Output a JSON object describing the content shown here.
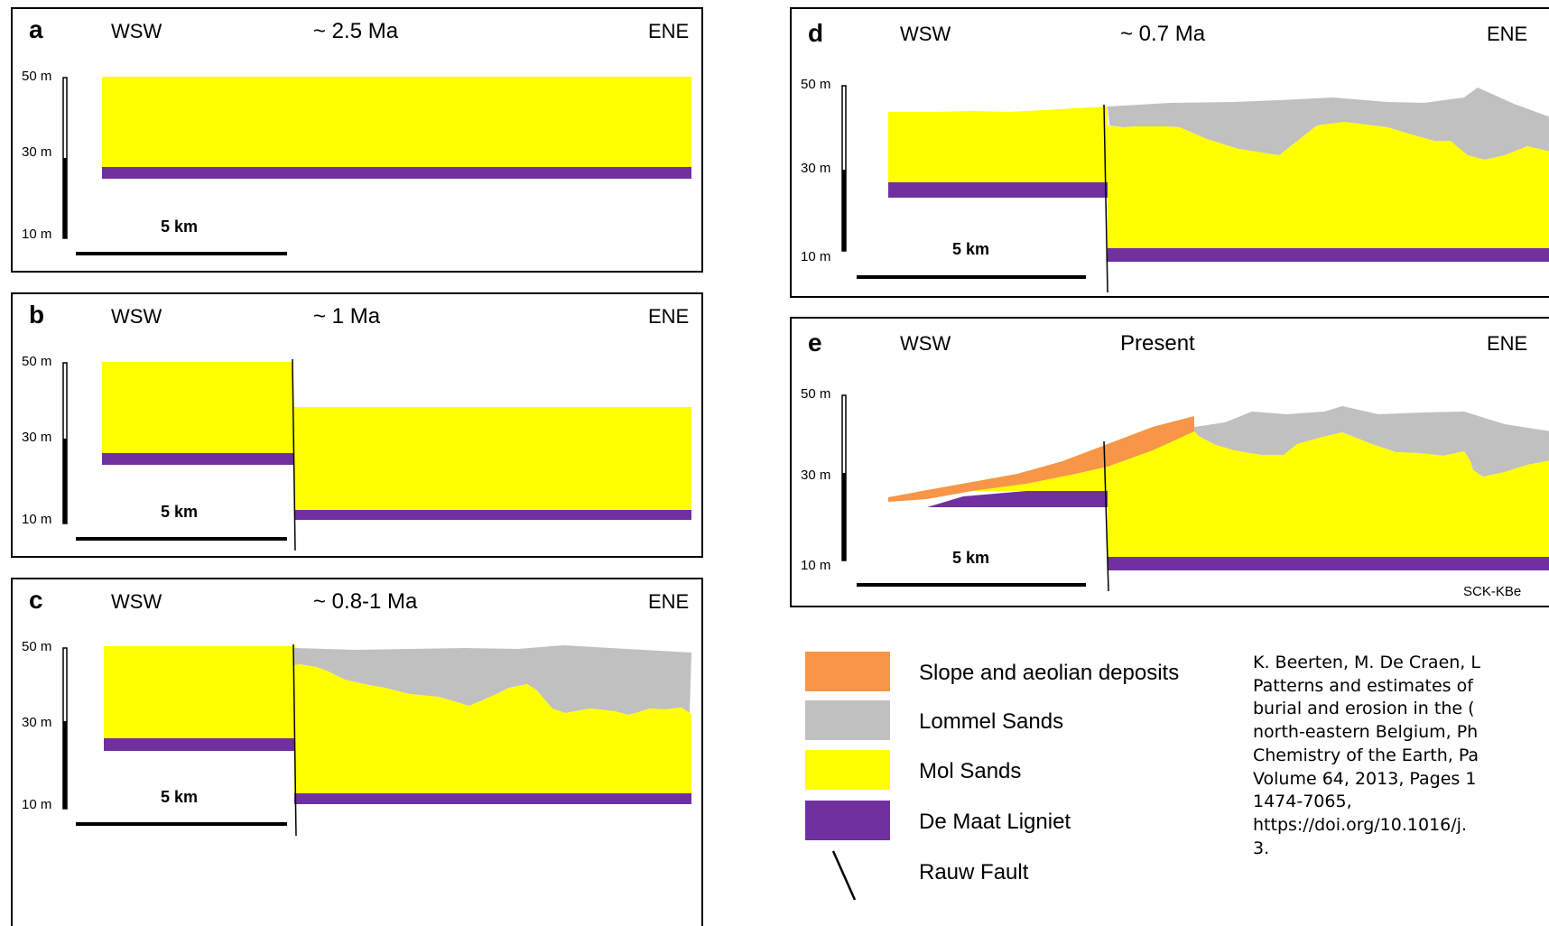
{
  "colors": {
    "slope_aeolian": "#f79646",
    "lommel_sands": "#c0c0c0",
    "mol_sands": "#ffff00",
    "de_maat_ligniet": "#7030a0",
    "rauw_fault": "#000000"
  },
  "panels": [
    {
      "id": "a",
      "label": "a",
      "west": "WSW",
      "east": "ENE",
      "age": "~ 2.5 Ma",
      "ticks": [
        "50 m",
        "30 m",
        "10 m"
      ],
      "scale": "5 km"
    },
    {
      "id": "b",
      "label": "b",
      "west": "WSW",
      "east": "ENE",
      "age": "~ 1 Ma",
      "ticks": [
        "50 m",
        "30 m",
        "10 m"
      ],
      "scale": "5 km"
    },
    {
      "id": "c",
      "label": "c",
      "west": "WSW",
      "east": "ENE",
      "age": "~ 0.8-1 Ma",
      "ticks": [
        "50 m",
        "30 m",
        "10 m"
      ],
      "scale": "5 km"
    },
    {
      "id": "d",
      "label": "d",
      "west": "WSW",
      "east": "ENE",
      "age": "~ 0.7 Ma",
      "ticks": [
        "50 m",
        "30 m",
        "10 m"
      ],
      "scale": "5 km"
    },
    {
      "id": "e",
      "label": "e",
      "west": "WSW",
      "east": "ENE",
      "age": "Present",
      "ticks": [
        "50 m",
        "30 m",
        "10 m"
      ],
      "scale": "5 km",
      "credit": "SCK-KBe"
    }
  ],
  "legend": [
    {
      "key": "slope_aeolian",
      "label": "Slope and aeolian deposits",
      "symbol": "swatch"
    },
    {
      "key": "lommel_sands",
      "label": "Lommel Sands",
      "symbol": "swatch"
    },
    {
      "key": "mol_sands",
      "label": "Mol Sands",
      "symbol": "swatch"
    },
    {
      "key": "de_maat_ligniet",
      "label": "De Maat Ligniet",
      "symbol": "swatch"
    },
    {
      "key": "rauw_fault",
      "label": "Rauw Fault",
      "symbol": "line"
    }
  ],
  "citation": {
    "lines": [
      "K. Beerten, M. De Craen, L",
      "Patterns and estimates of",
      "burial and erosion in the (",
      "north-eastern Belgium, Ph",
      "Chemistry of the Earth, Pa",
      "Volume 64, 2013, Pages 1",
      "1474-7065,",
      "https://doi.org/10.1016/j.",
      "3."
    ]
  }
}
